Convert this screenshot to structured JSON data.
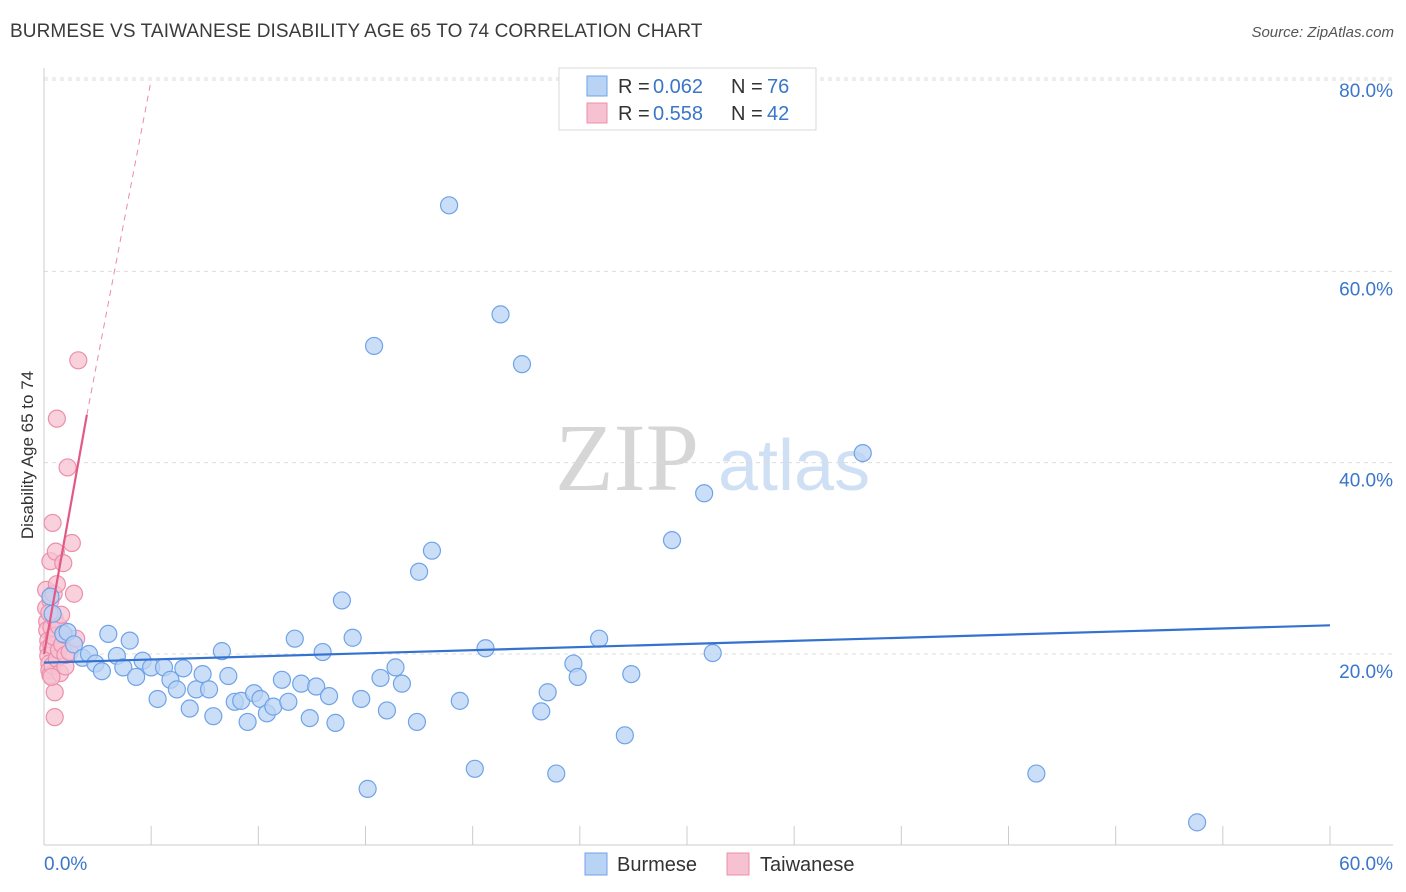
{
  "title": "BURMESE VS TAIWANESE DISABILITY AGE 65 TO 74 CORRELATION CHART",
  "source": "Source: ZipAtlas.com",
  "watermark": {
    "zip": "ZIP",
    "atlas": "atlas"
  },
  "chart_data": {
    "type": "scatter",
    "title": "BURMESE VS TAIWANESE DISABILITY AGE 65 TO 74 CORRELATION CHART",
    "xlabel": "",
    "ylabel": "Disability Age 65 to 74",
    "xlim": [
      0,
      60
    ],
    "ylim": [
      0,
      80
    ],
    "x_tick_labels": {
      "min": "0.0%",
      "max": "60.0%"
    },
    "y_ticks": [
      {
        "value": 20,
        "label": "20.0%"
      },
      {
        "value": 40,
        "label": "40.0%"
      },
      {
        "value": 60,
        "label": "60.0%"
      },
      {
        "value": 80,
        "label": "80.0%"
      }
    ],
    "legend_stats": [
      {
        "series": "Burmese",
        "r_label": "R =",
        "r": "0.062",
        "n_label": "N =",
        "n": "76"
      },
      {
        "series": "Taiwanese",
        "r_label": "R =",
        "r": "0.558",
        "n_label": "N =",
        "n": "42"
      }
    ],
    "series": [
      {
        "name": "Burmese",
        "color": "#6fa3e8",
        "fill": "#b9d3f4",
        "line_color": "#3572d0",
        "trend": {
          "x0": 0.0,
          "y0": 19.1,
          "x1": 60.0,
          "y1": 23.0
        },
        "points": [
          [
            0.3,
            26.0
          ],
          [
            0.4,
            24.2
          ],
          [
            0.9,
            22.1
          ],
          [
            1.1,
            22.3
          ],
          [
            1.4,
            21.0
          ],
          [
            1.8,
            19.6
          ],
          [
            2.1,
            20.0
          ],
          [
            2.4,
            19.0
          ],
          [
            2.7,
            18.2
          ],
          [
            3.0,
            22.1
          ],
          [
            3.4,
            19.8
          ],
          [
            3.7,
            18.6
          ],
          [
            4.0,
            21.4
          ],
          [
            4.3,
            17.6
          ],
          [
            4.6,
            19.3
          ],
          [
            5.0,
            18.6
          ],
          [
            5.3,
            15.3
          ],
          [
            5.6,
            18.6
          ],
          [
            5.9,
            17.3
          ],
          [
            6.2,
            16.3
          ],
          [
            6.5,
            18.5
          ],
          [
            6.8,
            14.3
          ],
          [
            7.1,
            16.3
          ],
          [
            7.4,
            17.9
          ],
          [
            7.7,
            16.3
          ],
          [
            7.9,
            13.5
          ],
          [
            8.3,
            20.3
          ],
          [
            8.6,
            17.7
          ],
          [
            8.9,
            15.0
          ],
          [
            9.2,
            15.1
          ],
          [
            9.5,
            12.9
          ],
          [
            9.8,
            15.9
          ],
          [
            10.1,
            15.3
          ],
          [
            10.4,
            13.8
          ],
          [
            10.7,
            14.5
          ],
          [
            11.1,
            17.3
          ],
          [
            11.4,
            15.0
          ],
          [
            11.7,
            21.6
          ],
          [
            12.0,
            16.9
          ],
          [
            12.4,
            13.3
          ],
          [
            12.7,
            16.6
          ],
          [
            13.0,
            20.2
          ],
          [
            13.3,
            15.6
          ],
          [
            13.6,
            12.8
          ],
          [
            13.9,
            25.6
          ],
          [
            14.4,
            21.7
          ],
          [
            14.8,
            15.3
          ],
          [
            15.1,
            5.9
          ],
          [
            15.4,
            52.2
          ],
          [
            15.7,
            17.5
          ],
          [
            16.0,
            14.1
          ],
          [
            16.4,
            18.6
          ],
          [
            16.7,
            16.9
          ],
          [
            17.4,
            12.9
          ],
          [
            17.5,
            28.6
          ],
          [
            18.1,
            30.8
          ],
          [
            18.9,
            66.9
          ],
          [
            19.4,
            15.1
          ],
          [
            20.1,
            8.0
          ],
          [
            20.6,
            20.6
          ],
          [
            21.3,
            55.5
          ],
          [
            22.3,
            50.3
          ],
          [
            23.2,
            14.0
          ],
          [
            23.5,
            16.0
          ],
          [
            23.9,
            7.5
          ],
          [
            24.7,
            19.0
          ],
          [
            24.9,
            17.6
          ],
          [
            25.9,
            21.6
          ],
          [
            27.1,
            11.5
          ],
          [
            27.4,
            17.9
          ],
          [
            29.3,
            31.9
          ],
          [
            30.8,
            36.8
          ],
          [
            31.2,
            20.1
          ],
          [
            38.2,
            41.0
          ],
          [
            46.3,
            7.5
          ],
          [
            53.8,
            2.4
          ]
        ]
      },
      {
        "name": "Taiwanese",
        "color": "#ec8fab",
        "fill": "#f6c2d2",
        "line_color": "#e35986",
        "trend": {
          "x0": 0.0,
          "y0": 20.0,
          "x1": 2.0,
          "y1": 45.0
        },
        "trend_ext": {
          "x0": 2.0,
          "y0": 45.0,
          "x1": 5.0,
          "y1": 80.0
        },
        "points": [
          [
            0.1,
            26.7
          ],
          [
            0.1,
            24.8
          ],
          [
            0.15,
            23.4
          ],
          [
            0.15,
            22.5
          ],
          [
            0.2,
            21.4
          ],
          [
            0.2,
            20.6
          ],
          [
            0.2,
            19.8
          ],
          [
            0.25,
            19.0
          ],
          [
            0.25,
            18.3
          ],
          [
            0.3,
            17.8
          ],
          [
            0.3,
            25.6
          ],
          [
            0.3,
            29.7
          ],
          [
            0.35,
            22.8
          ],
          [
            0.35,
            20.9
          ],
          [
            0.4,
            33.7
          ],
          [
            0.4,
            18.8
          ],
          [
            0.45,
            21.8
          ],
          [
            0.45,
            26.3
          ],
          [
            0.5,
            23.7
          ],
          [
            0.5,
            16.0
          ],
          [
            0.5,
            13.4
          ],
          [
            0.55,
            30.7
          ],
          [
            0.6,
            19.5
          ],
          [
            0.6,
            27.3
          ],
          [
            0.6,
            44.6
          ],
          [
            0.7,
            22.9
          ],
          [
            0.7,
            20.4
          ],
          [
            0.75,
            18.0
          ],
          [
            0.8,
            24.1
          ],
          [
            0.85,
            21.0
          ],
          [
            0.9,
            29.5
          ],
          [
            0.95,
            22.0
          ],
          [
            1.0,
            18.7
          ],
          [
            1.0,
            19.9
          ],
          [
            1.1,
            39.5
          ],
          [
            1.2,
            20.2
          ],
          [
            1.3,
            31.6
          ],
          [
            1.4,
            26.3
          ],
          [
            1.5,
            21.6
          ],
          [
            0.25,
            24.3
          ],
          [
            0.35,
            17.6
          ],
          [
            1.6,
            50.7
          ]
        ]
      }
    ]
  },
  "bottom_legend": [
    {
      "label": "Burmese"
    },
    {
      "label": "Taiwanese"
    }
  ]
}
